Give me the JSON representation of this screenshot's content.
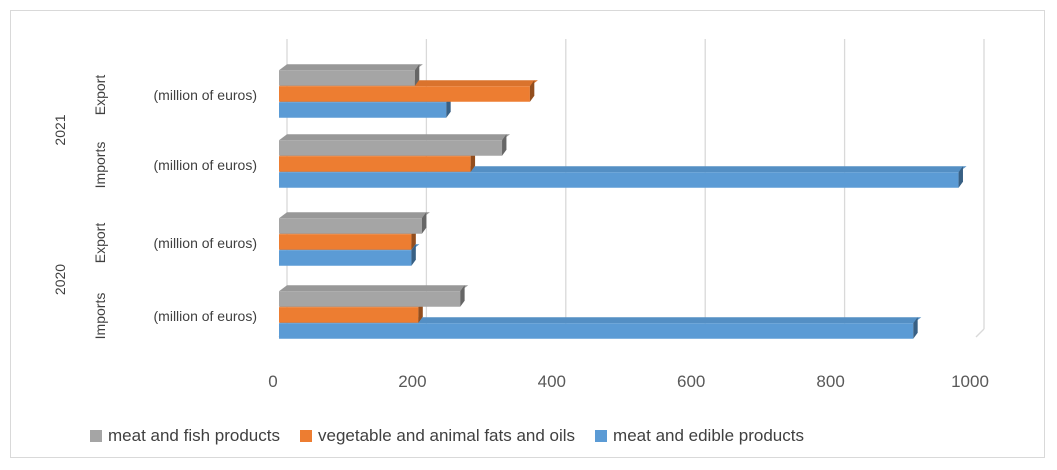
{
  "chart_data": {
    "type": "bar",
    "orientation": "horizontal",
    "style": "3d-bar",
    "categories": [
      {
        "year": "2020",
        "flow": "Imports",
        "label": "(million of euros)"
      },
      {
        "year": "2020",
        "flow": "Export",
        "label": "(million of euros)"
      },
      {
        "year": "2021",
        "flow": "Imports",
        "label": "(million of euros)"
      },
      {
        "year": "2021",
        "flow": "Export",
        "label": "(million of euros)"
      }
    ],
    "series": [
      {
        "name": "meat and edible products",
        "color": "#5b9bd5",
        "values": [
          910,
          190,
          975,
          240
        ]
      },
      {
        "name": "vegetable and animal fats and oils",
        "color": "#ed7d31",
        "values": [
          200,
          190,
          275,
          360
        ]
      },
      {
        "name": "meat and fish products",
        "color": "#a5a5a5",
        "values": [
          260,
          205,
          320,
          195
        ]
      }
    ],
    "xlim": [
      0,
      1000
    ],
    "xticks": [
      "0",
      "200",
      "400",
      "600",
      "800",
      "1000"
    ],
    "grid": true,
    "legend_position": "bottom"
  }
}
